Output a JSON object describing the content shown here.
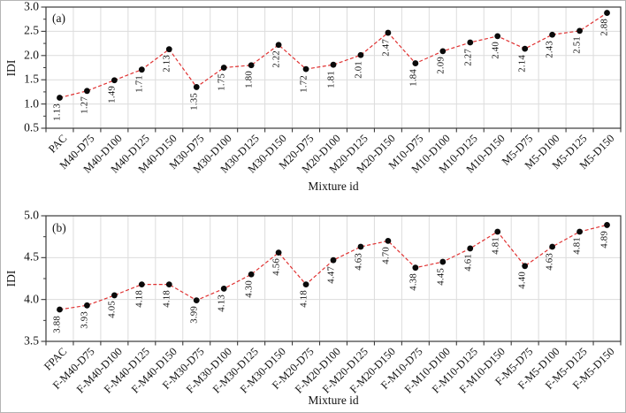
{
  "chart_data": [
    {
      "type": "line",
      "panel_label": "(a)",
      "xlabel": "Mixture id",
      "ylabel": "IDI",
      "ylim": [
        0.5,
        3.0
      ],
      "ytick_interval": 0.5,
      "yminor_interval": 0.25,
      "ytick_labels": [
        "0.5",
        "1.0",
        "1.5",
        "2.0",
        "2.5",
        "3.0"
      ],
      "grid": true,
      "legend": "none",
      "line_style": "dashed",
      "line_color": "#e03232",
      "marker": "circle",
      "marker_color": "#0a0a0a",
      "grid_color": "#dcdcdc",
      "frame_color": "#3a3a3a",
      "data_labels": true,
      "categories": [
        "PAC",
        "M40-D75",
        "M40-D100",
        "M40-D125",
        "M40-D150",
        "M30-D75",
        "M30-D100",
        "M30-D125",
        "M30-D150",
        "M20-D75",
        "M20-D100",
        "M20-D125",
        "M20-D150",
        "M10-D75",
        "M10-D100",
        "M10-D125",
        "M10-D150",
        "M5-D75",
        "M5-D100",
        "M5-D125",
        "M5-D150"
      ],
      "values": [
        1.13,
        1.27,
        1.49,
        1.71,
        2.13,
        1.35,
        1.75,
        1.8,
        2.22,
        1.72,
        1.81,
        2.01,
        2.47,
        1.84,
        2.09,
        2.27,
        2.4,
        2.14,
        2.43,
        2.51,
        2.88
      ]
    },
    {
      "type": "line",
      "panel_label": "(b)",
      "xlabel": "Mixture id",
      "ylabel": "IDI",
      "ylim": [
        3.5,
        5.0
      ],
      "ytick_interval": 0.5,
      "yminor_interval": 0.25,
      "ytick_labels": [
        "3.5",
        "4.0",
        "4.5",
        "5.0"
      ],
      "grid": true,
      "legend": "none",
      "line_style": "dashed",
      "line_color": "#e03232",
      "marker": "circle",
      "marker_color": "#0a0a0a",
      "grid_color": "#dcdcdc",
      "frame_color": "#3a3a3a",
      "data_labels": true,
      "categories": [
        "FPAC",
        "F-M40-D75",
        "F-M40-D100",
        "F-M40-D125",
        "F-M40-D150",
        "F-M30-D75",
        "F-M30-D100",
        "F-M30-D125",
        "F-M30-D150",
        "F-M20-D75",
        "F-M20-D100",
        "F-M20-D125",
        "F-M20-D150",
        "F-M10-D75",
        "F-M10-D100",
        "F-M10-D125",
        "F-M10-D150",
        "F-M5-D75",
        "F-M5-D100",
        "F-M5-D125",
        "F-M5-D150"
      ],
      "values": [
        3.88,
        3.93,
        4.05,
        4.18,
        4.18,
        3.99,
        4.13,
        4.3,
        4.56,
        4.18,
        4.47,
        4.63,
        4.7,
        4.38,
        4.45,
        4.61,
        4.81,
        4.4,
        4.63,
        4.81,
        4.89
      ]
    }
  ]
}
